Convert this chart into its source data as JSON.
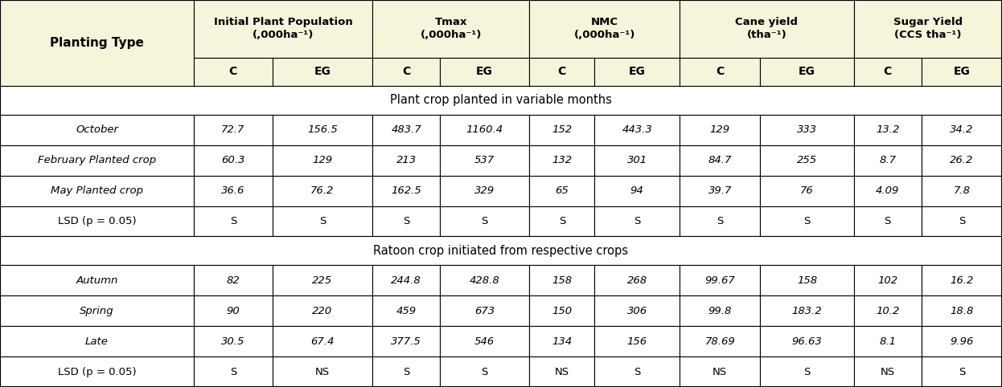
{
  "header_bg": "#f5f5dc",
  "body_bg": "#ffffff",
  "border_color": "#000000",
  "group_headers": [
    "Initial Plant Population\n(,000ha⁻¹)",
    "Tmax\n(,000ha⁻¹)",
    "NMC\n(,000ha⁻¹)",
    "Cane yield\n(tha⁻¹)",
    "Sugar Yield\n(CCS tha⁻¹)"
  ],
  "sub_headers": [
    "C",
    "EG",
    "C",
    "EG",
    "C",
    "EG",
    "C",
    "EG",
    "C",
    "EG"
  ],
  "section1_title": "Plant crop planted in variable months",
  "section1_rows": [
    [
      "October",
      "72.7",
      "156.5",
      "483.7",
      "1160.4",
      "152",
      "443.3",
      "129",
      "333",
      "13.2",
      "34.2"
    ],
    [
      "February Planted crop",
      "60.3",
      "129",
      "213",
      "537",
      "132",
      "301",
      "84.7",
      "255",
      "8.7",
      "26.2"
    ],
    [
      "May Planted crop",
      "36.6",
      "76.2",
      "162.5",
      "329",
      "65",
      "94",
      "39.7",
      "76",
      "4.09",
      "7.8"
    ],
    [
      "LSD (p = 0.05)",
      "S",
      "S",
      "S",
      "S",
      "S",
      "S",
      "S",
      "S",
      "S",
      "S"
    ]
  ],
  "section2_title": "Ratoon crop initiated from respective crops",
  "section2_rows": [
    [
      "Autumn",
      "82",
      "225",
      "244.8",
      "428.8",
      "158",
      "268",
      "99.67",
      "158",
      "102",
      "16.2"
    ],
    [
      "Spring",
      "90",
      "220",
      "459",
      "673",
      "150",
      "306",
      "99.8",
      "183.2",
      "10.2",
      "18.8"
    ],
    [
      "Late",
      "30.5",
      "67.4",
      "377.5",
      "546",
      "134",
      "156",
      "78.69",
      "96.63",
      "8.1",
      "9.96"
    ],
    [
      "LSD (p = 0.05)",
      "S",
      "NS",
      "S",
      "S",
      "NS",
      "S",
      "NS",
      "S",
      "NS",
      "S"
    ]
  ],
  "figsize": [
    12.46,
    4.82
  ],
  "dpi": 100
}
